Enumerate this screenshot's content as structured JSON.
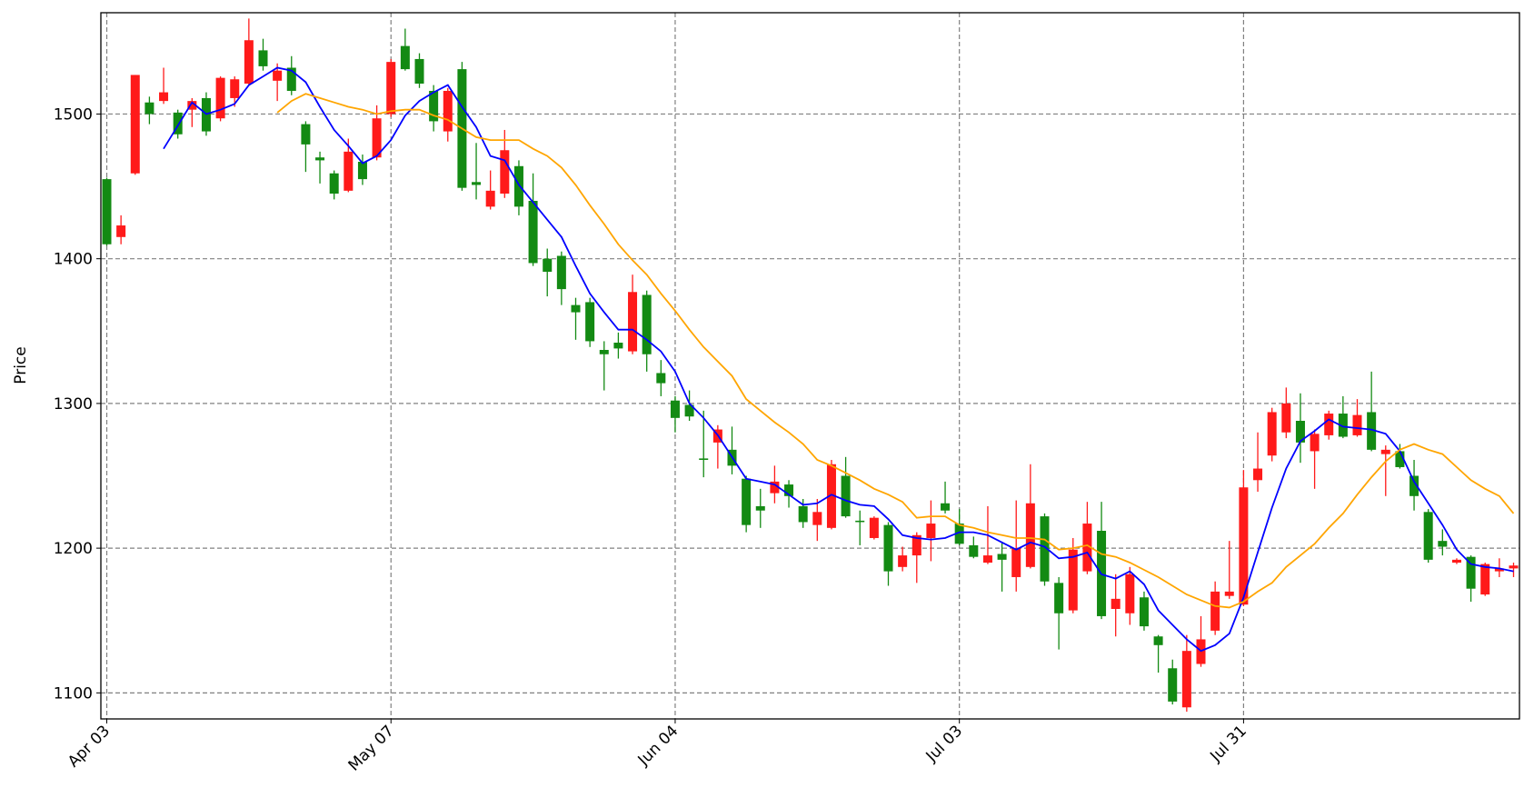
{
  "chart_data": {
    "type": "candlestick",
    "ylabel": "Price",
    "categories": [
      "Apr 03",
      null,
      null,
      null,
      null,
      null,
      null,
      null,
      null,
      null,
      null,
      null,
      null,
      null,
      null,
      null,
      null,
      null,
      null,
      null,
      "May 07",
      null,
      null,
      null,
      null,
      null,
      null,
      null,
      null,
      null,
      null,
      null,
      null,
      null,
      null,
      null,
      null,
      null,
      null,
      null,
      "Jun 04",
      null,
      null,
      null,
      null,
      null,
      null,
      null,
      null,
      null,
      null,
      null,
      null,
      null,
      null,
      null,
      null,
      null,
      null,
      null,
      "Jul 03",
      null,
      null,
      null,
      null,
      null,
      null,
      null,
      null,
      null,
      null,
      null,
      null,
      null,
      null,
      null,
      null,
      null,
      null,
      null,
      "Jul 31",
      null,
      null,
      null,
      null,
      null,
      null,
      null,
      null,
      null,
      null,
      null,
      null,
      null,
      null,
      null,
      null,
      null,
      null,
      null
    ],
    "open": [
      1455,
      1415,
      1459,
      1508,
      1509,
      1501,
      1503,
      1511,
      1497,
      1511,
      1521,
      1544,
      1523,
      1532,
      1493,
      1470,
      1459,
      1447,
      1467,
      1470,
      1500,
      1547,
      1538,
      1516,
      1488,
      1531,
      1453,
      1436,
      1445,
      1464,
      1440,
      1400,
      1402,
      1368,
      1370,
      1337,
      1342,
      1336,
      1375,
      1321,
      1302,
      1299,
      1262,
      1273,
      1268,
      1248,
      1229,
      1238,
      1244,
      1229,
      1216,
      1214,
      1250,
      1219,
      1207,
      1216,
      1187,
      1195,
      1207,
      1231,
      1217,
      1202,
      1190,
      1196,
      1180,
      1187,
      1222,
      1176,
      1157,
      1184,
      1212,
      1158,
      1155,
      1166,
      1139,
      1117,
      1090,
      1120,
      1143,
      1167,
      1161,
      1247,
      1264,
      1280,
      1288,
      1267,
      1278,
      1293,
      1278,
      1294,
      1265,
      1267,
      1250,
      1225,
      1205,
      1190,
      1194,
      1168,
      1184,
      1186
    ],
    "high": [
      1456,
      1430,
      1527,
      1512,
      1532,
      1503,
      1511,
      1515,
      1526,
      1526,
      1566,
      1552,
      1535,
      1540,
      1495,
      1474,
      1461,
      1483,
      1472,
      1506,
      1538,
      1559,
      1542,
      1520,
      1518,
      1536,
      1480,
      1461,
      1489,
      1468,
      1459,
      1407,
      1405,
      1373,
      1373,
      1343,
      1349,
      1389,
      1378,
      1330,
      1305,
      1309,
      1295,
      1285,
      1284,
      1250,
      1241,
      1257,
      1247,
      1234,
      1234,
      1261,
      1263,
      1226,
      1222,
      1218,
      1201,
      1211,
      1233,
      1246,
      1227,
      1208,
      1229,
      1204,
      1233,
      1258,
      1224,
      1180,
      1207,
      1232,
      1232,
      1182,
      1187,
      1170,
      1140,
      1123,
      1140,
      1153,
      1177,
      1205,
      1254,
      1280,
      1297,
      1311,
      1307,
      1282,
      1295,
      1305,
      1303,
      1322,
      1271,
      1272,
      1261,
      1227,
      1213,
      1193,
      1195,
      1190,
      1193,
      1190
    ],
    "low": [
      1409,
      1410,
      1458,
      1493,
      1507,
      1483,
      1491,
      1485,
      1495,
      1505,
      1520,
      1530,
      1509,
      1513,
      1460,
      1452,
      1441,
      1446,
      1451,
      1468,
      1498,
      1530,
      1518,
      1488,
      1481,
      1447,
      1441,
      1434,
      1442,
      1430,
      1395,
      1374,
      1368,
      1344,
      1339,
      1309,
      1331,
      1334,
      1322,
      1305,
      1280,
      1288,
      1249,
      1255,
      1251,
      1211,
      1214,
      1231,
      1228,
      1214,
      1205,
      1213,
      1221,
      1202,
      1206,
      1174,
      1184,
      1176,
      1191,
      1224,
      1202,
      1193,
      1189,
      1170,
      1170,
      1186,
      1174,
      1130,
      1155,
      1182,
      1151,
      1139,
      1147,
      1143,
      1114,
      1092,
      1087,
      1118,
      1140,
      1165,
      1160,
      1239,
      1260,
      1276,
      1259,
      1241,
      1275,
      1276,
      1277,
      1267,
      1236,
      1255,
      1226,
      1190,
      1195,
      1189,
      1163,
      1167,
      1180,
      1180
    ],
    "close": [
      1410,
      1423,
      1527,
      1500,
      1515,
      1486,
      1509,
      1488,
      1525,
      1524,
      1551,
      1533,
      1530,
      1516,
      1479,
      1468,
      1445,
      1474,
      1455,
      1497,
      1536,
      1531,
      1521,
      1495,
      1516,
      1449,
      1451,
      1447,
      1475,
      1436,
      1397,
      1391,
      1379,
      1363,
      1343,
      1334,
      1338,
      1377,
      1334,
      1314,
      1290,
      1291,
      1261,
      1282,
      1257,
      1216,
      1226,
      1246,
      1236,
      1218,
      1225,
      1258,
      1222,
      1218,
      1221,
      1184,
      1195,
      1209,
      1217,
      1226,
      1203,
      1194,
      1195,
      1192,
      1200,
      1231,
      1177,
      1155,
      1199,
      1217,
      1153,
      1165,
      1182,
      1146,
      1133,
      1094,
      1129,
      1137,
      1170,
      1170,
      1242,
      1255,
      1294,
      1300,
      1273,
      1279,
      1293,
      1277,
      1292,
      1268,
      1268,
      1256,
      1236,
      1192,
      1201,
      1192,
      1172,
      1189,
      1186,
      1188
    ],
    "up_color": "#ff1a1a",
    "down_color": "#138a13",
    "series": [
      {
        "color": "#0000ff",
        "values": [
          null,
          null,
          null,
          null,
          1476,
          1492,
          1508,
          1500,
          1503,
          1507,
          1520,
          1526,
          1532,
          1530,
          1522,
          1505,
          1489,
          1478,
          1466,
          1471,
          1482,
          1499,
          1509,
          1515,
          1520,
          1505,
          1491,
          1471,
          1468,
          1451,
          1439,
          1427,
          1415,
          1395,
          1376,
          1363,
          1351,
          1351,
          1344,
          1336,
          1322,
          1300,
          1290,
          1278,
          1263,
          1248,
          1246,
          1244,
          1237,
          1230,
          1231,
          1237,
          1233,
          1230,
          1229,
          1220,
          1209,
          1207,
          1206,
          1207,
          1211,
          1211,
          1209,
          1204,
          1199,
          1204,
          1201,
          1193,
          1194,
          1197,
          1182,
          1179,
          1184,
          1175,
          1157,
          1147,
          1137,
          1129,
          1133,
          1141,
          1166,
          1197,
          1228,
          1255,
          1274,
          1281,
          1289,
          1284,
          1283,
          1282,
          1279,
          1267,
          1246,
          1231,
          1216,
          1199,
          1189,
          1187,
          1186,
          1184
        ]
      },
      {
        "color": "#ffa500",
        "values": [
          null,
          null,
          null,
          null,
          null,
          null,
          null,
          null,
          null,
          null,
          null,
          null,
          1501,
          1509,
          1514,
          1511,
          1508,
          1505,
          1503,
          1500,
          1502,
          1503,
          1503,
          1499,
          1496,
          1490,
          1484,
          1482,
          1482,
          1482,
          1476,
          1471,
          1463,
          1451,
          1437,
          1424,
          1410,
          1399,
          1389,
          1376,
          1364,
          1351,
          1339,
          1329,
          1319,
          1303,
          1295,
          1287,
          1280,
          1272,
          1261,
          1257,
          1252,
          1247,
          1241,
          1237,
          1232,
          1221,
          1222,
          1222,
          1216,
          1214,
          1211,
          1209,
          1207,
          1207,
          1206,
          1199,
          1200,
          1202,
          1196,
          1194,
          1190,
          1185,
          1180,
          1174,
          1168,
          1164,
          1160,
          1159,
          1163,
          1170,
          1176,
          1187,
          1195,
          1203,
          1214,
          1224,
          1237,
          1249,
          1260,
          1268,
          1272,
          1268,
          1265,
          1256,
          1247,
          1241,
          1236,
          1224
        ]
      }
    ],
    "ylim": [
      1082,
      1570
    ],
    "yticks": [
      1100,
      1200,
      1300,
      1400,
      1500
    ],
    "grid": true
  }
}
